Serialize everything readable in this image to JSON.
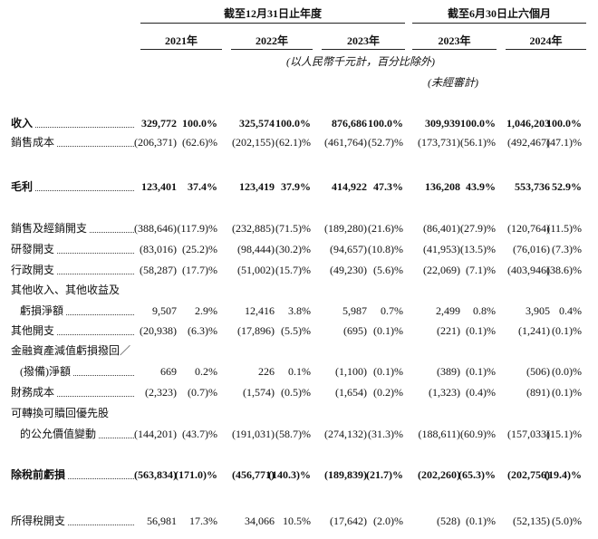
{
  "header": {
    "group_titles": [
      "截至12月31日止年度",
      "截至6月30日止六個月"
    ],
    "years": [
      "2021年",
      "2022年",
      "2023年",
      "2023年",
      "2024年"
    ],
    "currency_note": "(以人民幣千元計，百分比除外)",
    "unaudited_note": "(未經審計)"
  },
  "table": {
    "rows": [
      {
        "label": [
          "收入"
        ],
        "bold": true,
        "cells": [
          "329,772",
          "100.0%",
          "325,574",
          "100.0%",
          "876,686",
          "100.0%",
          "309,939",
          "100.0%",
          "1,046,203",
          "100.0%"
        ]
      },
      {
        "label": [
          "銷售成本"
        ],
        "bold": false,
        "cells": [
          "(206,371)",
          "(62.6)%",
          "(202,155)",
          "(62.1)%",
          "(461,764)",
          "(52.7)%",
          "(173,731)",
          "(56.1)%",
          "(492,467)",
          "(47.1)%"
        ]
      },
      {
        "label": [
          "毛利"
        ],
        "bold": true,
        "cells": [
          "123,401",
          "37.4%",
          "123,419",
          "37.9%",
          "414,922",
          "47.3%",
          "136,208",
          "43.9%",
          "553,736",
          "52.9%"
        ]
      },
      {
        "label": [
          "銷售及經銷開支"
        ],
        "bold": false,
        "cells": [
          "(388,646)",
          "(117.9)%",
          "(232,885)",
          "(71.5)%",
          "(189,280)",
          "(21.6)%",
          "(86,401)",
          "(27.9)%",
          "(120,764)",
          "(11.5)%"
        ]
      },
      {
        "label": [
          "研發開支"
        ],
        "bold": false,
        "cells": [
          "(83,016)",
          "(25.2)%",
          "(98,444)",
          "(30.2)%",
          "(94,657)",
          "(10.8)%",
          "(41,953)",
          "(13.5)%",
          "(76,016)",
          "(7.3)%"
        ]
      },
      {
        "label": [
          "行政開支"
        ],
        "bold": false,
        "cells": [
          "(58,287)",
          "(17.7)%",
          "(51,002)",
          "(15.7)%",
          "(49,230)",
          "(5.6)%",
          "(22,069)",
          "(7.1)%",
          "(403,946)",
          "(38.6)%"
        ]
      },
      {
        "label": [
          "其他收入、其他收益及",
          "虧損淨額"
        ],
        "bold": false,
        "cells": [
          "9,507",
          "2.9%",
          "12,416",
          "3.8%",
          "5,987",
          "0.7%",
          "2,499",
          "0.8%",
          "3,905",
          "0.4%"
        ]
      },
      {
        "label": [
          "其他開支"
        ],
        "bold": false,
        "cells": [
          "(20,938)",
          "(6.3)%",
          "(17,896)",
          "(5.5)%",
          "(695)",
          "(0.1)%",
          "(221)",
          "(0.1)%",
          "(1,241)",
          "(0.1)%"
        ]
      },
      {
        "label": [
          "金融資產減值虧損撥回／",
          "(撥備)淨額"
        ],
        "bold": false,
        "cells": [
          "669",
          "0.2%",
          "226",
          "0.1%",
          "(1,100)",
          "(0.1)%",
          "(389)",
          "(0.1)%",
          "(506)",
          "(0.0)%"
        ]
      },
      {
        "label": [
          "財務成本"
        ],
        "bold": false,
        "cells": [
          "(2,323)",
          "(0.7)%",
          "(1,574)",
          "(0.5)%",
          "(1,654)",
          "(0.2)%",
          "(1,323)",
          "(0.4)%",
          "(891)",
          "(0.1)%"
        ]
      },
      {
        "label": [
          "可轉換可贖回優先股",
          "的公允價值變動"
        ],
        "bold": false,
        "cells": [
          "(144,201)",
          "(43.7)%",
          "(191,031)",
          "(58.7)%",
          "(274,132)",
          "(31.3)%",
          "(188,611)",
          "(60.9)%",
          "(157,033)",
          "(15.1)%"
        ]
      },
      {
        "label": [
          "除稅前虧損"
        ],
        "bold": true,
        "cells": [
          "(563,834)",
          "(171.0)%",
          "(456,771)",
          "(140.3)%",
          "(189,839)",
          "(21.7)%",
          "(202,260)",
          "(65.3)%",
          "(202,756)",
          "(19.4)%"
        ]
      },
      {
        "label": [
          "所得稅開支"
        ],
        "bold": false,
        "cells": [
          "56,981",
          "17.3%",
          "34,066",
          "10.5%",
          "(17,642)",
          "(2.0)%",
          "(528)",
          "(0.1)%",
          "(52,135)",
          "(5.0)%"
        ]
      }
    ]
  }
}
